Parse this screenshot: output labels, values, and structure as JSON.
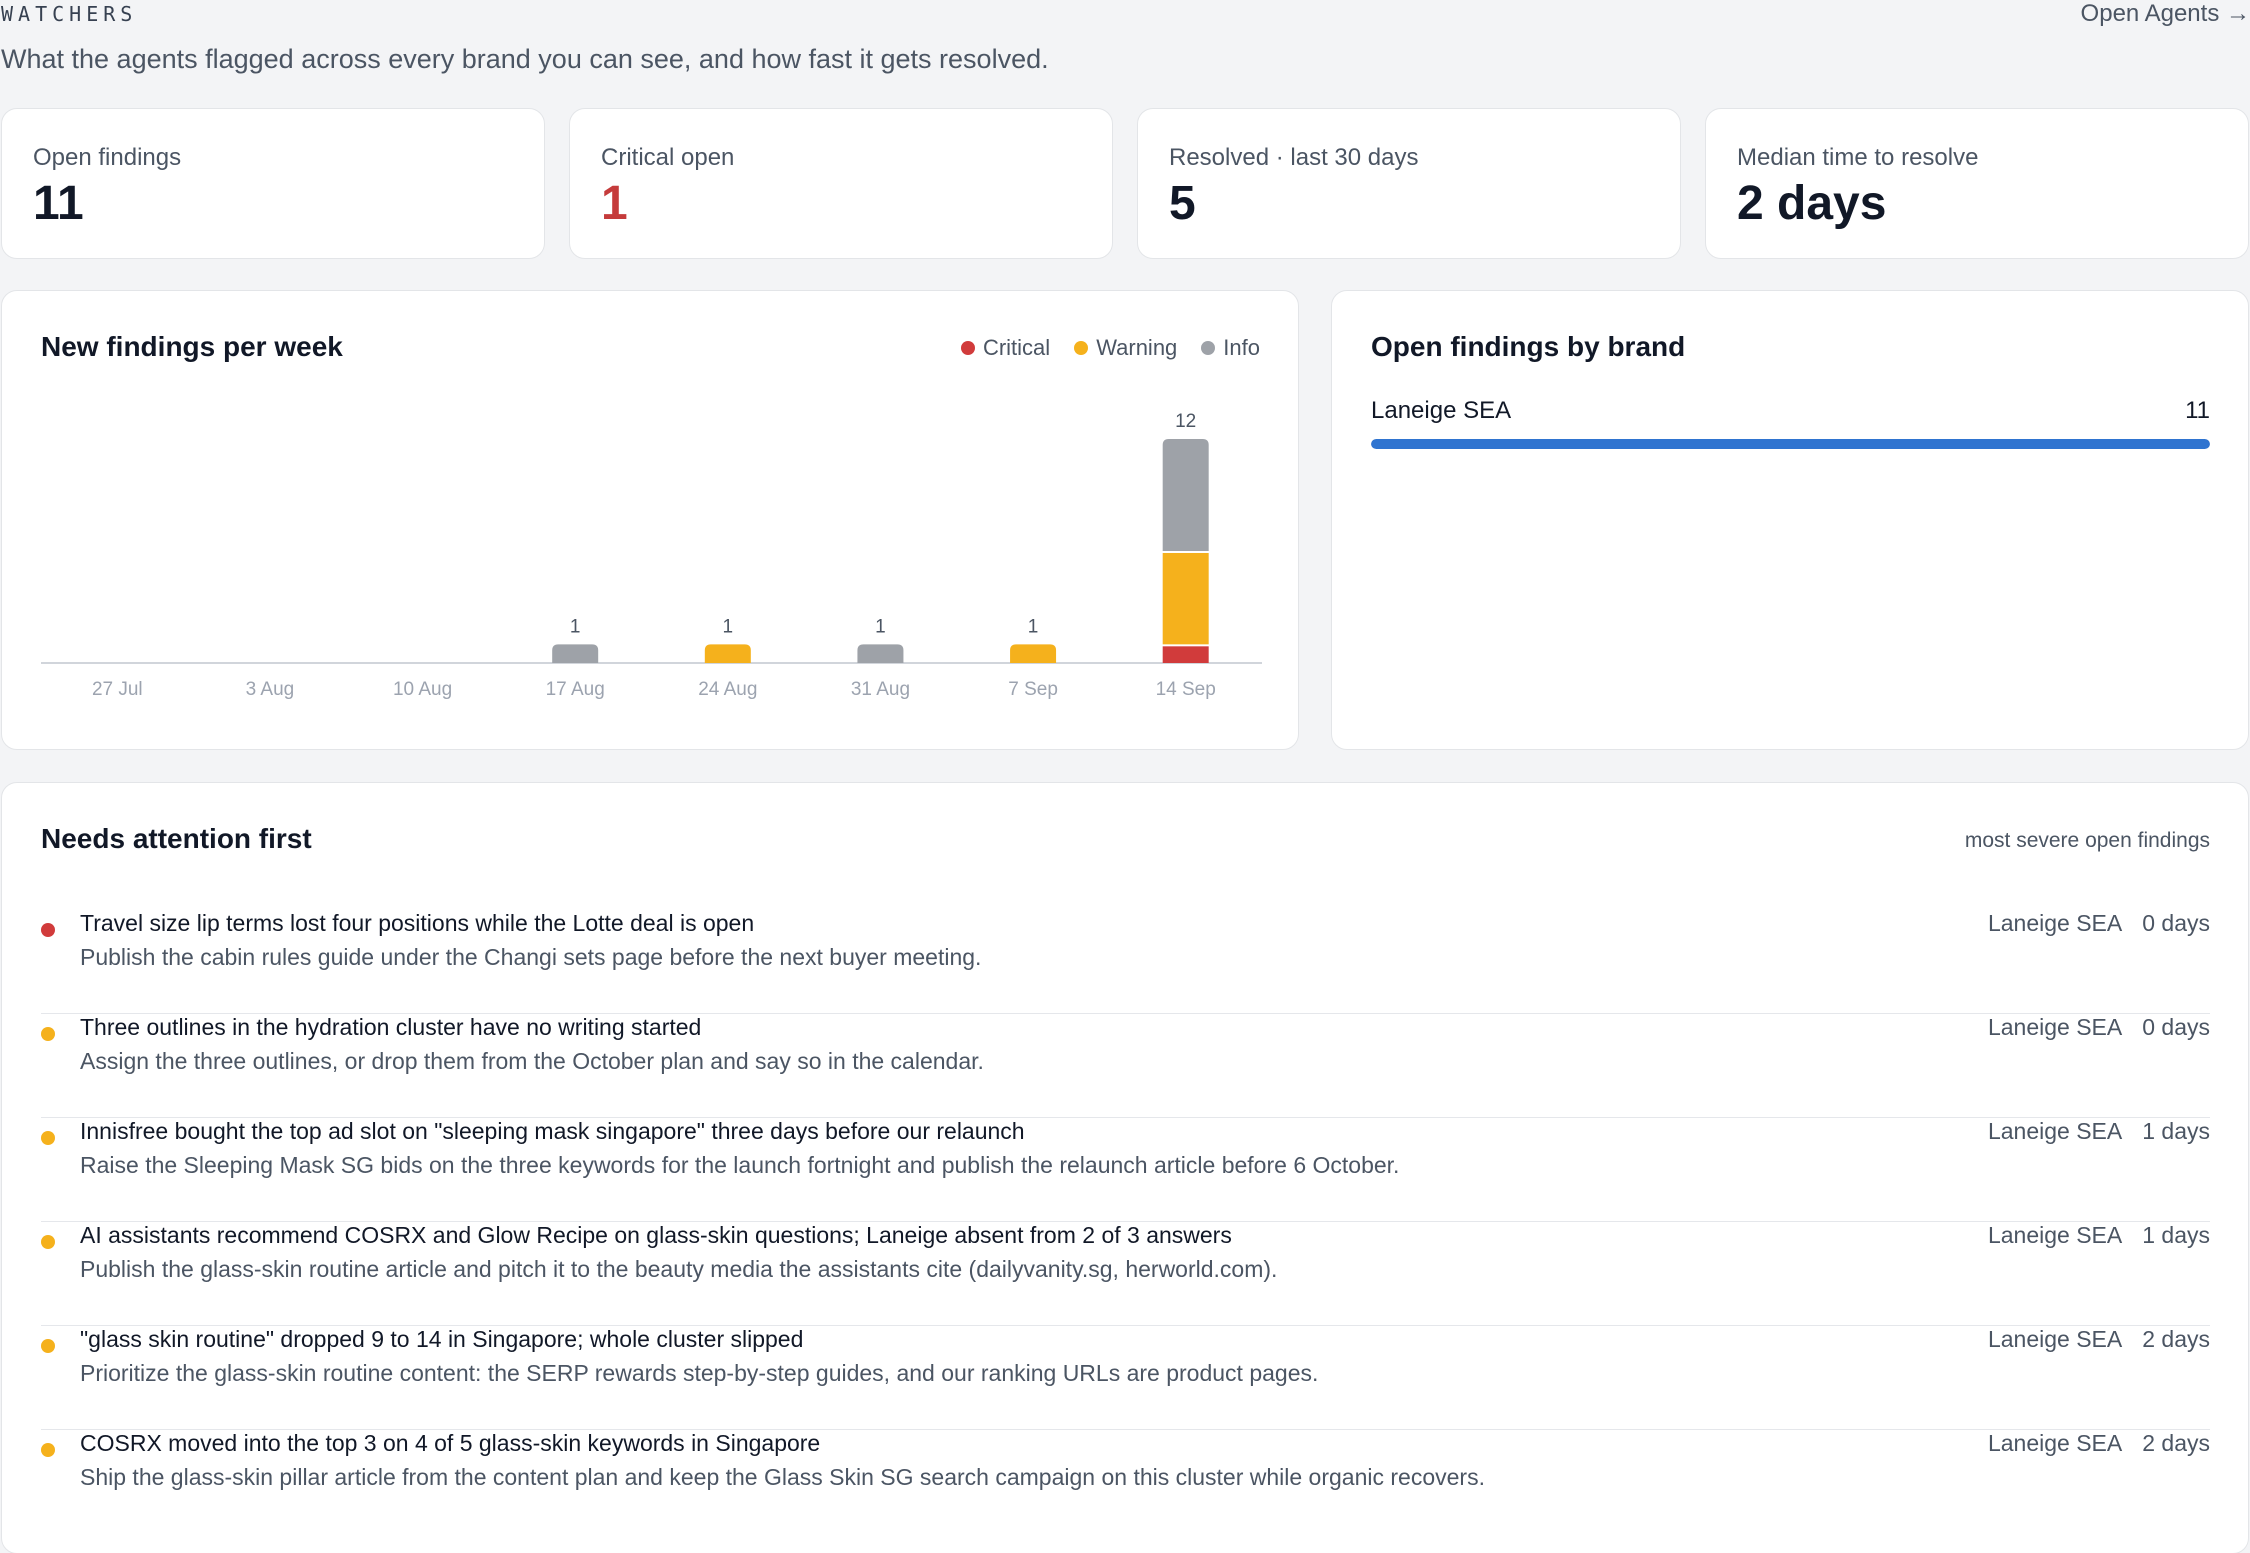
{
  "header": {
    "eyebrow": "WATCHERS",
    "subtitle": "What the agents flagged across every brand you can see, and how fast it gets resolved.",
    "open_agents_link": "Open Agents →"
  },
  "stats": [
    {
      "label": "Open findings",
      "value": "11"
    },
    {
      "label": "Critical open",
      "value": "1"
    },
    {
      "label": "Resolved · last 30 days",
      "value": "5"
    },
    {
      "label": "Median time to resolve",
      "value": "2 days"
    }
  ],
  "colors": {
    "critical": "#d13b3b",
    "warning": "#f5b11c",
    "info": "#9ea2a8",
    "brand_bar": "#2f74d0"
  },
  "weekly_chart": {
    "title": "New findings per week",
    "legend": [
      {
        "label": "Critical",
        "color": "#d13b3b"
      },
      {
        "label": "Warning",
        "color": "#f5b11c"
      },
      {
        "label": "Info",
        "color": "#9ea2a8"
      }
    ]
  },
  "chart_data": {
    "type": "bar",
    "stacked": true,
    "title": "New findings per week",
    "categories": [
      "27 Jul",
      "3 Aug",
      "10 Aug",
      "17 Aug",
      "24 Aug",
      "31 Aug",
      "7 Sep",
      "14 Sep"
    ],
    "series": [
      {
        "name": "Critical",
        "color": "#d13b3b",
        "values": [
          0,
          0,
          0,
          0,
          0,
          0,
          0,
          1
        ]
      },
      {
        "name": "Warning",
        "color": "#f5b11c",
        "values": [
          0,
          0,
          0,
          0,
          1,
          0,
          1,
          5
        ]
      },
      {
        "name": "Info",
        "color": "#9ea2a8",
        "values": [
          0,
          0,
          0,
          1,
          0,
          1,
          0,
          6
        ]
      }
    ],
    "totals": [
      0,
      0,
      0,
      1,
      1,
      1,
      1,
      12
    ],
    "ylim": [
      0,
      12
    ],
    "grid": false,
    "legend_position": "top-right"
  },
  "brands": {
    "title": "Open findings by brand",
    "items": [
      {
        "name": "Laneige SEA",
        "count": "11",
        "share": 1.0
      }
    ]
  },
  "needs_attention": {
    "title": "Needs attention first",
    "caption": "most severe open findings",
    "items": [
      {
        "severity": "critical",
        "title": "Travel size lip terms lost four positions while the Lotte deal is open",
        "description": "Publish the cabin rules guide under the Changi sets page before the next buyer meeting.",
        "brand": "Laneige SEA",
        "age": "0 days"
      },
      {
        "severity": "warning",
        "title": "Three outlines in the hydration cluster have no writing started",
        "description": "Assign the three outlines, or drop them from the October plan and say so in the calendar.",
        "brand": "Laneige SEA",
        "age": "0 days"
      },
      {
        "severity": "warning",
        "title": "Innisfree bought the top ad slot on \"sleeping mask singapore\" three days before our relaunch",
        "description": "Raise the Sleeping Mask SG bids on the three keywords for the launch fortnight and publish the relaunch article before 6 October.",
        "brand": "Laneige SEA",
        "age": "1 days"
      },
      {
        "severity": "warning",
        "title": "AI assistants recommend COSRX and Glow Recipe on glass-skin questions; Laneige absent from 2 of 3 answers",
        "description": "Publish the glass-skin routine article and pitch it to the beauty media the assistants cite (dailyvanity.sg, herworld.com).",
        "brand": "Laneige SEA",
        "age": "1 days"
      },
      {
        "severity": "warning",
        "title": "\"glass skin routine\" dropped 9 to 14 in Singapore; whole cluster slipped",
        "description": "Prioritize the glass-skin routine content: the SERP rewards step-by-step guides, and our ranking URLs are product pages.",
        "brand": "Laneige SEA",
        "age": "2 days"
      },
      {
        "severity": "warning",
        "title": "COSRX moved into the top 3 on 4 of 5 glass-skin keywords in Singapore",
        "description": "Ship the glass-skin pillar article from the content plan and keep the Glass Skin SG search campaign on this cluster while organic recovers.",
        "brand": "Laneige SEA",
        "age": "2 days"
      }
    ]
  }
}
